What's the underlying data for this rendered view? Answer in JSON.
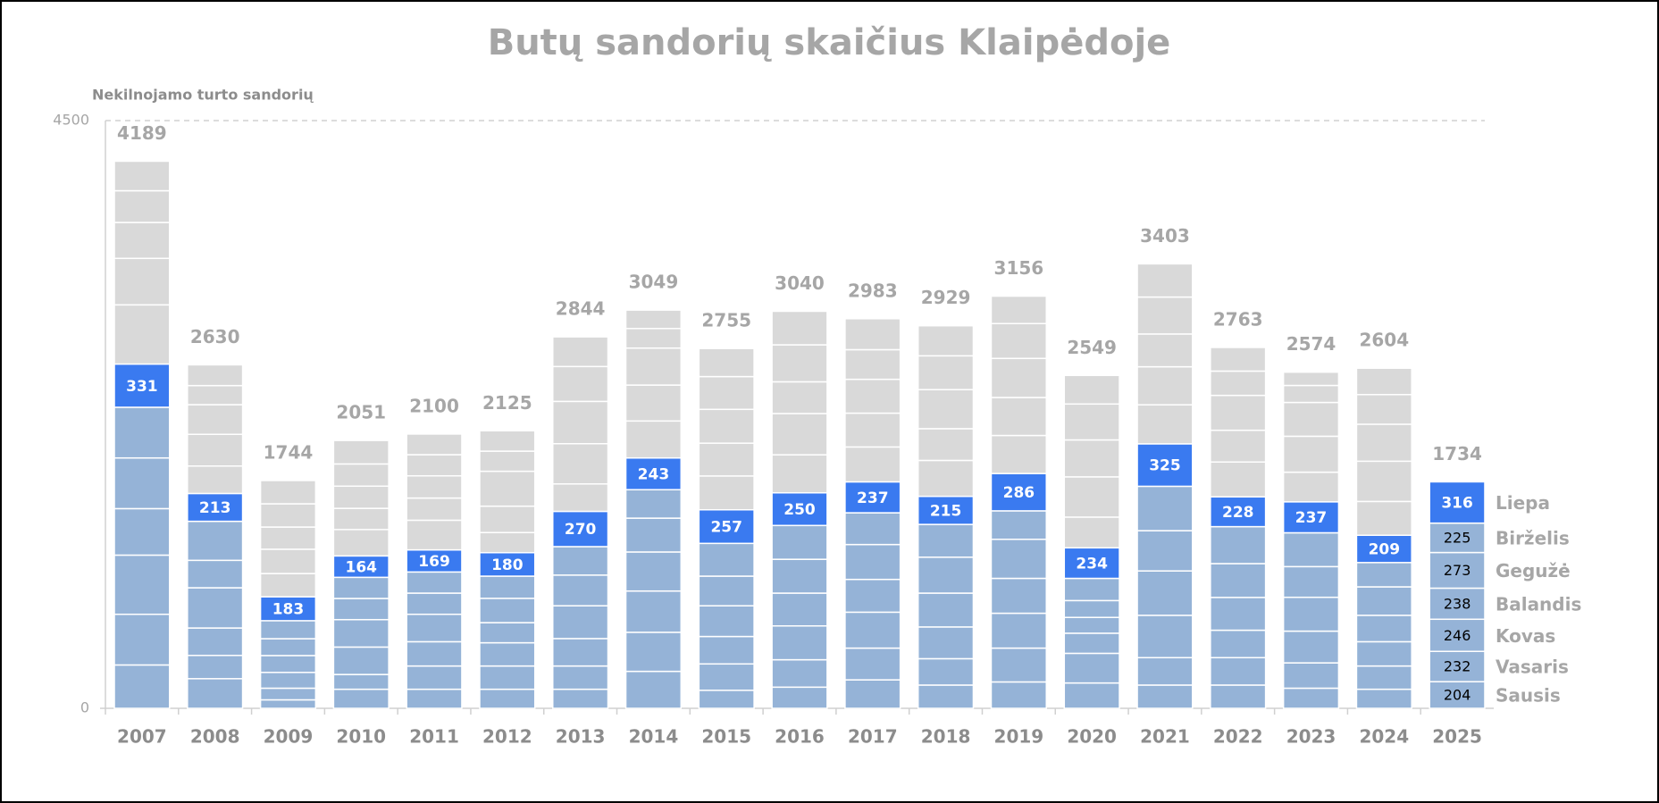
{
  "chart_data": {
    "type": "stacked_bar",
    "title": "Butų sandorių skaičius Klaipėdoje",
    "y_label": "Nekilnojamo turto sandorių",
    "categories": [
      "2007",
      "2008",
      "2009",
      "2010",
      "2011",
      "2012",
      "2013",
      "2014",
      "2015",
      "2016",
      "2017",
      "2018",
      "2019",
      "2020",
      "2021",
      "2022",
      "2023",
      "2024",
      "2025"
    ],
    "totals": [
      4189,
      2630,
      1744,
      2051,
      2100,
      2125,
      2844,
      3049,
      2755,
      3040,
      2983,
      2929,
      3156,
      2549,
      3403,
      2763,
      2574,
      2604,
      1734
    ],
    "ylim": [
      0,
      4500
    ],
    "yticks": [
      0,
      4500
    ],
    "grid": "dashed",
    "series": [
      {
        "name": "Sausis",
        "color": "#95b3d7",
        "label_last": true,
        "values": [
          332,
          227,
          65,
          146,
          146,
          146,
          146,
          283,
          138,
          162,
          218,
          178,
          202,
          194,
          178,
          178,
          154,
          146,
          204
        ]
      },
      {
        "name": "Vasaris",
        "color": "#95b3d7",
        "label_last": true,
        "values": [
          388,
          178,
          89,
          113,
          178,
          178,
          178,
          299,
          202,
          210,
          243,
          202,
          259,
          227,
          210,
          210,
          194,
          178,
          232
        ]
      },
      {
        "name": "Kovas",
        "color": "#95b3d7",
        "label_last": true,
        "values": [
          453,
          210,
          121,
          210,
          186,
          178,
          210,
          316,
          210,
          259,
          275,
          243,
          267,
          154,
          324,
          210,
          243,
          186,
          246
        ]
      },
      {
        "name": "Balandis",
        "color": "#95b3d7",
        "label_last": true,
        "values": [
          356,
          308,
          129,
          210,
          210,
          154,
          251,
          299,
          235,
          251,
          251,
          259,
          267,
          121,
          340,
          251,
          259,
          202,
          238
        ]
      },
      {
        "name": "Gegužė",
        "color": "#95b3d7",
        "label_last": true,
        "values": [
          388,
          210,
          129,
          162,
          162,
          186,
          235,
          259,
          227,
          259,
          267,
          275,
          299,
          129,
          308,
          259,
          235,
          218,
          273
        ]
      },
      {
        "name": "Birželis",
        "color": "#95b3d7",
        "label_last": true,
        "values": [
          388,
          299,
          138,
          162,
          162,
          170,
          218,
          218,
          251,
          259,
          243,
          251,
          218,
          170,
          340,
          283,
          259,
          186,
          225
        ]
      },
      {
        "name": "Liepa",
        "color": "#3a7af0",
        "label_all": true,
        "values": [
          331,
          213,
          183,
          164,
          169,
          180,
          270,
          243,
          257,
          250,
          237,
          215,
          286,
          234,
          325,
          228,
          237,
          209,
          316
        ]
      },
      {
        "color": "#d9d9d9",
        "values": [
          453,
          210,
          178,
          202,
          227,
          154,
          210,
          283,
          259,
          291,
          267,
          275,
          291,
          235,
          299,
          267,
          227,
          259,
          null
        ]
      },
      {
        "color": "#d9d9d9",
        "values": [
          356,
          243,
          186,
          162,
          170,
          202,
          308,
          275,
          251,
          316,
          259,
          243,
          291,
          308,
          291,
          243,
          275,
          308,
          null
        ]
      },
      {
        "color": "#d9d9d9",
        "values": [
          275,
          227,
          170,
          170,
          170,
          267,
          324,
          283,
          259,
          243,
          259,
          299,
          299,
          283,
          251,
          267,
          259,
          283,
          null
        ]
      },
      {
        "color": "#d9d9d9",
        "values": [
          243,
          146,
          178,
          170,
          162,
          154,
          267,
          150,
          251,
          283,
          227,
          259,
          267,
          275,
          283,
          186,
          130,
          227,
          null
        ]
      },
      {
        "color": "#d9d9d9",
        "values": [
          226,
          159,
          178,
          180,
          158,
          156,
          227,
          141,
          215,
          257,
          237,
          230,
          210,
          219,
          254,
          181,
          102,
          202,
          null
        ]
      }
    ]
  }
}
